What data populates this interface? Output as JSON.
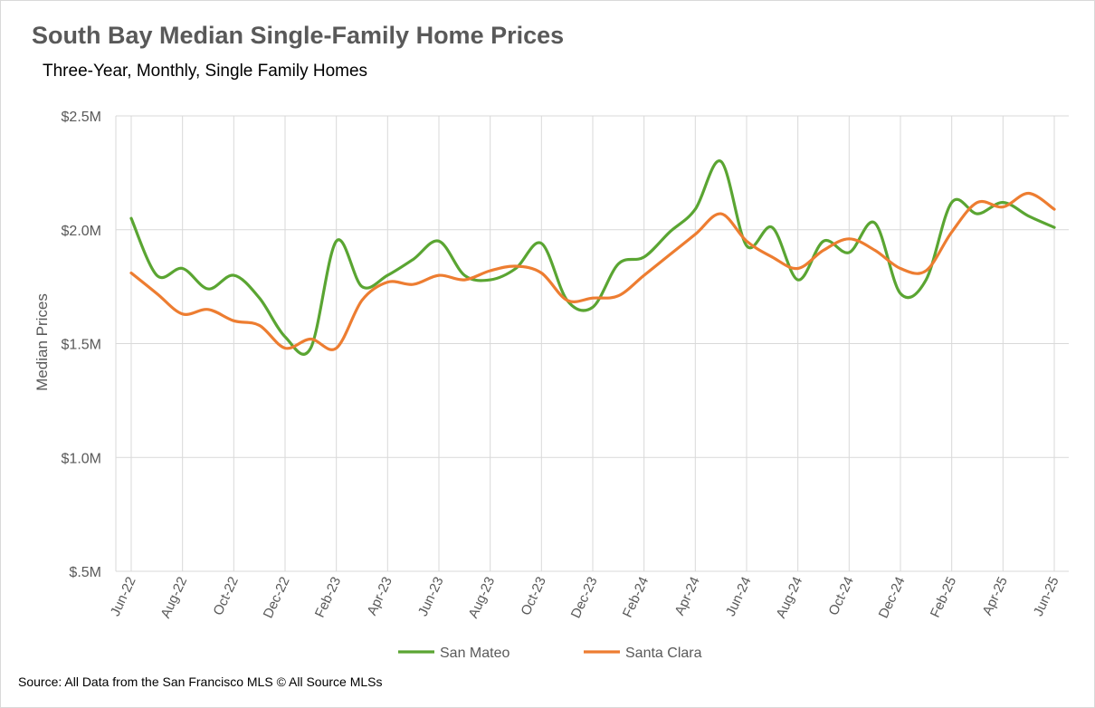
{
  "title": "South Bay Median Single-Family Home Prices",
  "subtitle": "Three-Year, Monthly, Single Family Homes",
  "source": "Source: All Data from the San Francisco MLS © All Source MLSs",
  "chart_data": {
    "type": "line",
    "ylabel": "Median Prices",
    "xlabel": "",
    "ylim": [
      0.5,
      2.5
    ],
    "y_ticks": [
      {
        "value": 2.5,
        "label": "$2.5M"
      },
      {
        "value": 2.0,
        "label": "$2.0M"
      },
      {
        "value": 1.5,
        "label": "$1.5M"
      },
      {
        "value": 1.0,
        "label": "$1.0M"
      },
      {
        "value": 0.5,
        "label": "$.5M"
      }
    ],
    "x_ticks": [
      "Jun-22",
      "Aug-22",
      "Oct-22",
      "Dec-22",
      "Feb-23",
      "Apr-23",
      "Jun-23",
      "Aug-23",
      "Oct-23",
      "Dec-23",
      "Feb-24",
      "Apr-24",
      "Jun-24",
      "Aug-24",
      "Oct-24",
      "Dec-24",
      "Feb-25",
      "Apr-25",
      "Jun-25"
    ],
    "categories": [
      "Jun-22",
      "Jul-22",
      "Aug-22",
      "Sep-22",
      "Oct-22",
      "Nov-22",
      "Dec-22",
      "Jan-23",
      "Feb-23",
      "Mar-23",
      "Apr-23",
      "May-23",
      "Jun-23",
      "Jul-23",
      "Aug-23",
      "Sep-23",
      "Oct-23",
      "Nov-23",
      "Dec-23",
      "Jan-24",
      "Feb-24",
      "Mar-24",
      "Apr-24",
      "May-24",
      "Jun-24",
      "Jul-24",
      "Aug-24",
      "Sep-24",
      "Oct-24",
      "Nov-24",
      "Dec-24",
      "Jan-25",
      "Feb-25",
      "Mar-25",
      "Apr-25",
      "May-25",
      "Jun-25"
    ],
    "grid": true,
    "legend": "bottom",
    "series": [
      {
        "name": "San Mateo",
        "color": "#5aa532",
        "values": [
          2.05,
          1.8,
          1.83,
          1.74,
          1.8,
          1.7,
          1.53,
          1.48,
          1.95,
          1.75,
          1.8,
          1.87,
          1.95,
          1.8,
          1.78,
          1.83,
          1.94,
          1.69,
          1.66,
          1.85,
          1.88,
          1.99,
          2.09,
          2.3,
          1.93,
          2.01,
          1.78,
          1.95,
          1.9,
          2.03,
          1.72,
          1.78,
          2.12,
          2.07,
          2.12,
          2.06,
          2.01
        ]
      },
      {
        "name": "Santa Clara",
        "color": "#ed7d31",
        "values": [
          1.81,
          1.72,
          1.63,
          1.65,
          1.6,
          1.58,
          1.48,
          1.52,
          1.48,
          1.69,
          1.77,
          1.76,
          1.8,
          1.78,
          1.82,
          1.84,
          1.81,
          1.69,
          1.7,
          1.71,
          1.8,
          1.89,
          1.98,
          2.07,
          1.95,
          1.88,
          1.83,
          1.91,
          1.96,
          1.91,
          1.83,
          1.82,
          1.99,
          2.12,
          2.1,
          2.16,
          2.09
        ]
      }
    ]
  }
}
